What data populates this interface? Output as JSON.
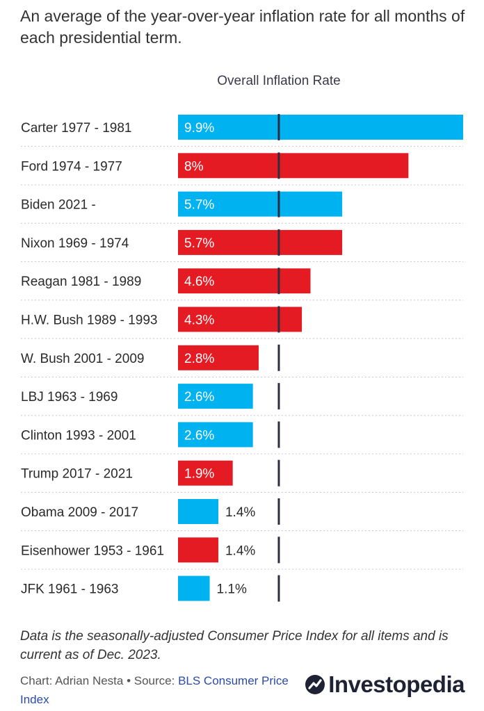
{
  "subtitle": "An average of the year-over-year inflation rate for all months of each presidential term.",
  "chart_data": {
    "type": "bar",
    "orientation": "horizontal",
    "categories": [
      "Carter 1977 - 1981",
      "Ford 1974 - 1977",
      "Biden 2021 -",
      "Nixon 1969 - 1974",
      "Reagan 1981 - 1989",
      "H.W. Bush 1989 - 1993",
      "W. Bush 2001 - 2009",
      "LBJ 1963 - 1969",
      "Clinton 1993 - 2001",
      "Trump 2017 - 2021",
      "Obama 2009 - 2017",
      "Eisenhower 1953 - 1961",
      "JFK 1961 - 1963"
    ],
    "values": [
      9.9,
      8.0,
      5.7,
      5.7,
      4.6,
      4.3,
      2.8,
      2.6,
      2.6,
      1.9,
      1.4,
      1.4,
      1.1
    ],
    "value_labels": [
      "9.9%",
      "8%",
      "5.7%",
      "5.7%",
      "4.6%",
      "4.3%",
      "2.8%",
      "2.6%",
      "2.6%",
      "1.9%",
      "1.4%",
      "1.4%",
      "1.1%"
    ],
    "party": [
      "D",
      "R",
      "D",
      "R",
      "R",
      "R",
      "R",
      "D",
      "D",
      "R",
      "D",
      "R",
      "D"
    ],
    "party_colors": {
      "D": "#00b2f0",
      "R": "#e51b23"
    },
    "reference_line": {
      "label": "Overall Inflation Rate",
      "value": 3.5
    },
    "xlim": [
      0,
      9.9
    ],
    "grid": "dotted row separators",
    "legend": "none"
  },
  "footnote": "Data is the seasonally-adjusted Consumer Price Index for all items and is current as of Dec. 2023.",
  "credit": {
    "prefix": "Chart: Adrian Nesta • Source: ",
    "source_link": "BLS Consumer Price Index"
  },
  "logo": {
    "text": "Investopedia",
    "icon": "investopedia-logo-icon"
  }
}
